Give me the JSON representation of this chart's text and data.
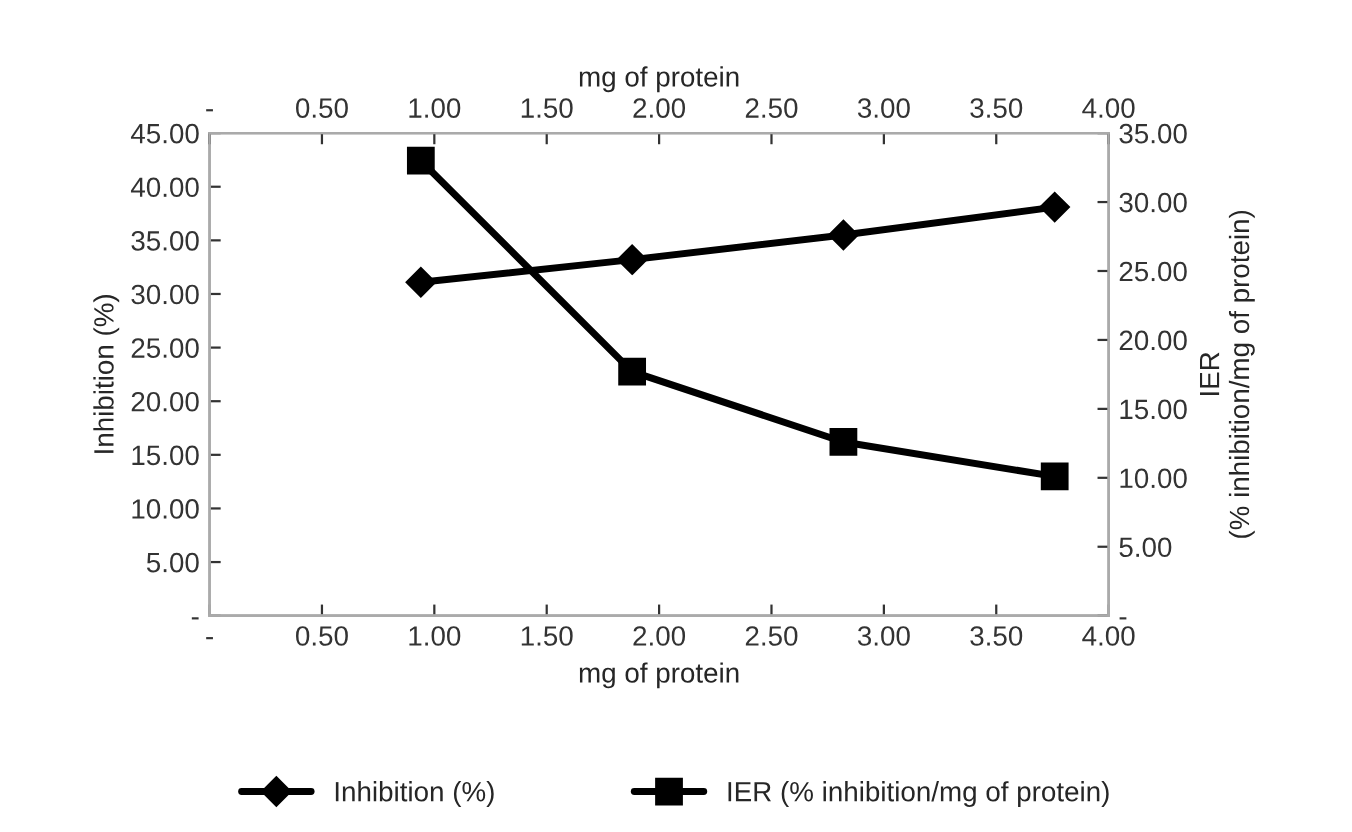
{
  "chart_data": {
    "type": "line",
    "xlabel": "mg of protein",
    "x2label": "mg of protein",
    "ylabel": "Inhibition (%)",
    "y2label": "IER\n(% inhibition/mg of protein)",
    "x": [
      0.94,
      1.88,
      2.82,
      3.76
    ],
    "series": [
      {
        "name": "Inhibition (%)",
        "color": "#000000",
        "marker": "diamond",
        "values": [
          31.1,
          33.2,
          35.5,
          38.1
        ]
      },
      {
        "name": "IER (% inhibition/mg of protein)",
        "color": "#000000",
        "marker": "square",
        "axis": "y2",
        "values": [
          33.0,
          17.7,
          12.6,
          10.1
        ]
      }
    ],
    "xlim": [
      0,
      4
    ],
    "x2lim": [
      0,
      4
    ],
    "xticks": [
      {
        "value": 0,
        "label": "-"
      },
      {
        "value": 0.5,
        "label": "0.50"
      },
      {
        "value": 1,
        "label": "1.00"
      },
      {
        "value": 1.5,
        "label": "1.50"
      },
      {
        "value": 2,
        "label": "2.00"
      },
      {
        "value": 2.5,
        "label": "2.50"
      },
      {
        "value": 3,
        "label": "3.00"
      },
      {
        "value": 3.5,
        "label": "3.50"
      },
      {
        "value": 4,
        "label": "4.00"
      }
    ],
    "x2ticks": [
      {
        "value": 0,
        "label": "-"
      },
      {
        "value": 0.5,
        "label": "0.50"
      },
      {
        "value": 1,
        "label": "1.00"
      },
      {
        "value": 1.5,
        "label": "1.50"
      },
      {
        "value": 2,
        "label": "2.00"
      },
      {
        "value": 2.5,
        "label": "2.50"
      },
      {
        "value": 3,
        "label": "3.00"
      },
      {
        "value": 3.5,
        "label": "3.50"
      },
      {
        "value": 4,
        "label": "4.00"
      }
    ],
    "ylim": [
      0,
      45
    ],
    "yticks": [
      {
        "value": 0,
        "label": "-"
      },
      {
        "value": 5,
        "label": "5.00"
      },
      {
        "value": 10,
        "label": "10.00"
      },
      {
        "value": 15,
        "label": "15.00"
      },
      {
        "value": 20,
        "label": "20.00"
      },
      {
        "value": 25,
        "label": "25.00"
      },
      {
        "value": 30,
        "label": "30.00"
      },
      {
        "value": 35,
        "label": "35.00"
      },
      {
        "value": 40,
        "label": "40.00"
      },
      {
        "value": 45,
        "label": "45.00"
      }
    ],
    "y2lim": [
      0,
      35
    ],
    "y2ticks": [
      {
        "value": 0,
        "label": "-"
      },
      {
        "value": 5,
        "label": "5.00"
      },
      {
        "value": 10,
        "label": "10.00"
      },
      {
        "value": 15,
        "label": "15.00"
      },
      {
        "value": 20,
        "label": "20.00"
      },
      {
        "value": 25,
        "label": "25.00"
      },
      {
        "value": 30,
        "label": "30.00"
      },
      {
        "value": 35,
        "label": "35.00"
      }
    ],
    "grid": false,
    "legend": "bottom",
    "line_style": "solid"
  }
}
